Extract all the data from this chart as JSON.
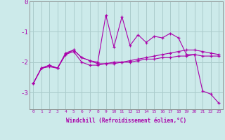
{
  "xlabel": "Windchill (Refroidissement éolien,°C)",
  "background_color": "#cceaea",
  "grid_color": "#aacccc",
  "line_color": "#aa00aa",
  "x_hours": [
    0,
    1,
    2,
    3,
    4,
    5,
    6,
    7,
    8,
    9,
    10,
    11,
    12,
    13,
    14,
    15,
    16,
    17,
    18,
    19,
    20,
    21,
    22,
    23
  ],
  "series1": [
    -2.7,
    -2.2,
    -2.1,
    -2.2,
    -1.75,
    -1.6,
    -1.85,
    -1.95,
    -2.05,
    -2.05,
    -2.05,
    -2.0,
    -1.95,
    -1.9,
    -1.85,
    -1.8,
    -1.75,
    -1.7,
    -1.65,
    -1.6,
    -1.6,
    -1.65,
    -1.7,
    -1.75
  ],
  "series2": [
    -2.7,
    -2.2,
    -2.15,
    -2.2,
    -1.75,
    -1.65,
    -2.0,
    -2.1,
    -2.1,
    -2.05,
    -2.0,
    -2.0,
    -2.0,
    -1.95,
    -1.9,
    -1.9,
    -1.85,
    -1.85,
    -1.8,
    -1.8,
    -1.75,
    -1.8,
    -1.8,
    -1.8
  ],
  "series3": [
    -2.7,
    -2.2,
    -2.1,
    -2.2,
    -1.7,
    -1.6,
    -1.85,
    -1.95,
    -2.0,
    -0.45,
    -1.5,
    -0.5,
    -1.45,
    -1.1,
    -1.35,
    -1.15,
    -1.2,
    -1.05,
    -1.2,
    -1.75,
    -1.75,
    -2.95,
    -3.05,
    -3.35
  ],
  "ylim": [
    -3.55,
    0.0
  ],
  "yticks": [
    0,
    -1,
    -2,
    -3
  ],
  "ytick_labels": [
    "0",
    "-1",
    "-2",
    "-3"
  ],
  "xlim": [
    -0.5,
    23.5
  ],
  "figsize": [
    3.2,
    2.0
  ],
  "dpi": 100
}
